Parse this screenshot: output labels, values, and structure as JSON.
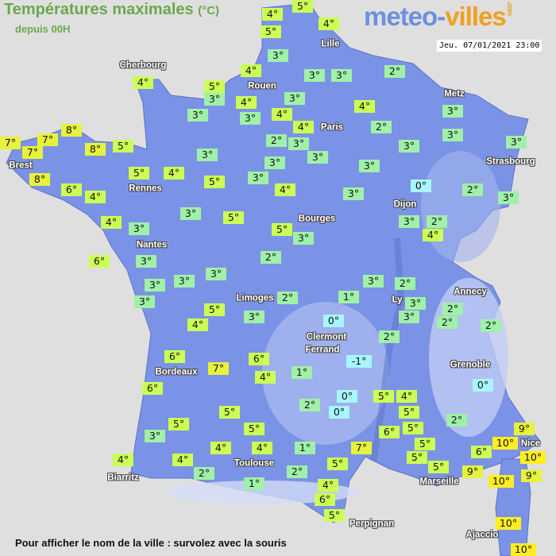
{
  "header": {
    "title": "Températures maximales",
    "unit": "(°C)",
    "subtitle": "depuis 00H",
    "datetime": "Jeu. 07/01/2021 23:00"
  },
  "logo": {
    "part1": "meteo-",
    "part2": "villes",
    "suffix": ".com"
  },
  "footer": "Pour afficher le nom de la ville : survolez avec la souris",
  "colors": {
    "background": "#e0dfdf",
    "land": "#7b93e6",
    "cold": "#a8f6ff",
    "cool": "#a0f0a8",
    "mild": "#ccff55",
    "warm": "#e6f23c",
    "hot": "#ffee22"
  },
  "cities": [
    "Cherbourg",
    "Lille",
    "Rouen",
    "Paris",
    "Metz",
    "Strasbourg",
    "Brest",
    "Rennes",
    "Nantes",
    "Dijon",
    "Bourges",
    "Limoges",
    "Annecy",
    "Ly",
    "Clermont",
    "Ferrand",
    "Grenoble",
    "Bordeaux",
    "Toulouse",
    "Biarritz",
    "Marseille",
    "Nice",
    "Perpignan",
    "Ajaccio"
  ],
  "temperatures": [
    4,
    5,
    5,
    4,
    3,
    4,
    4,
    5,
    3,
    4,
    3,
    3,
    4,
    3,
    3,
    3,
    2,
    4,
    4,
    2,
    3,
    3,
    2,
    3,
    3,
    3,
    3,
    8,
    7,
    7,
    7,
    8,
    5,
    3,
    8,
    6,
    4,
    5,
    4,
    5,
    3,
    3,
    3,
    4,
    3,
    0,
    2,
    3,
    4,
    3,
    3,
    5,
    5,
    3,
    3,
    2,
    4,
    6,
    3,
    2,
    3,
    3,
    3,
    3,
    3,
    2,
    5,
    3,
    4,
    2,
    1,
    0,
    3,
    3,
    2,
    2,
    2,
    2,
    -1,
    6,
    7,
    6,
    4,
    1,
    6,
    0,
    0,
    0,
    2,
    5,
    4,
    5,
    5,
    5,
    3,
    5,
    2,
    6,
    5,
    9,
    10,
    4,
    4,
    1,
    7,
    5,
    6,
    10,
    5,
    5,
    4,
    4,
    2,
    2,
    5,
    9,
    10,
    9,
    1,
    4,
    6,
    5,
    10,
    10
  ]
}
